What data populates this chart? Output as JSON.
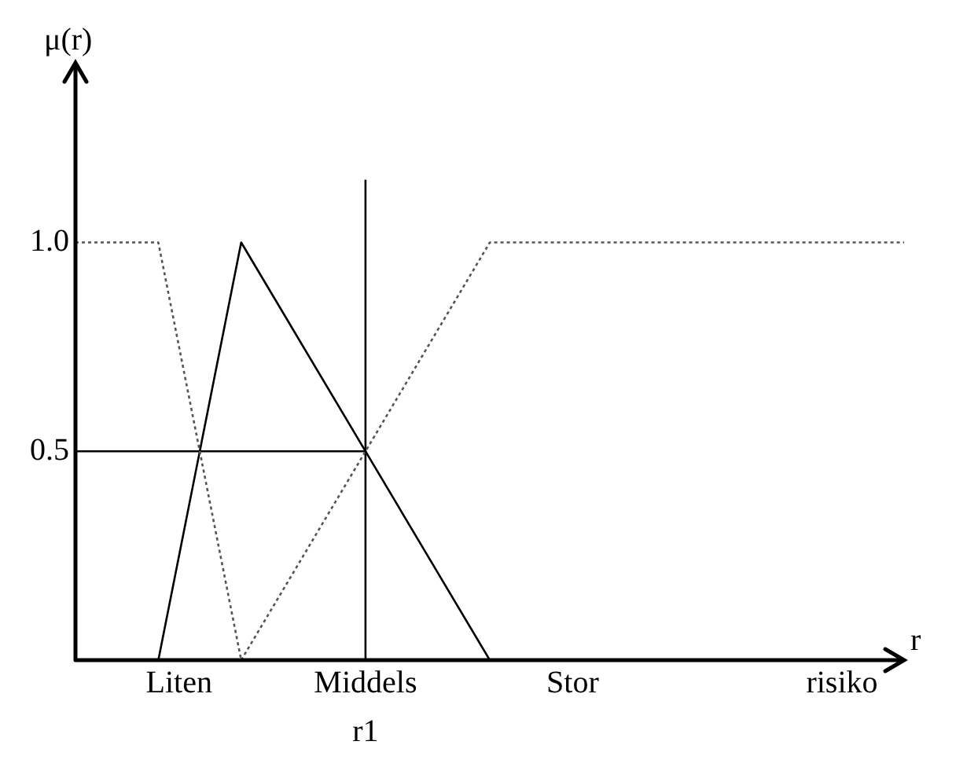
{
  "chart_data": {
    "type": "line",
    "xlabel": "r",
    "ylabel": "μ(r)",
    "categories": [
      null,
      null,
      null,
      null,
      null,
      "Liten",
      null,
      null,
      null,
      null,
      null,
      null,
      null,
      null,
      "Middels",
      null,
      null,
      null,
      null,
      null,
      null,
      null,
      null,
      null,
      "Stor",
      null,
      null,
      null,
      null,
      null,
      null,
      null,
      null,
      null,
      null,
      null,
      null,
      "risiko",
      null,
      null,
      null
    ],
    "ylim": [
      0,
      1.43
    ],
    "yticks": [
      {
        "value": 0.5,
        "label": "0.5"
      },
      {
        "value": 1,
        "label": "1.0"
      }
    ],
    "series": [
      {
        "color": "#555555",
        "line_style": "dotted",
        "values": [
          1,
          null,
          null,
          null,
          1,
          null,
          null,
          null,
          0,
          null,
          null,
          null,
          null,
          null,
          null,
          null,
          null,
          null,
          null,
          null,
          null,
          null,
          null,
          null,
          null,
          null,
          null,
          null,
          null,
          null,
          null,
          null,
          null,
          null,
          null,
          null,
          null,
          null,
          null,
          null,
          null
        ]
      },
      {
        "color": "#000000",
        "line_style": "solid",
        "values": [
          null,
          null,
          null,
          null,
          0,
          null,
          null,
          null,
          1,
          null,
          null,
          null,
          null,
          null,
          null,
          null,
          null,
          null,
          null,
          null,
          0,
          null,
          null,
          null,
          null,
          null,
          null,
          null,
          null,
          null,
          null,
          null,
          null,
          null,
          null,
          null,
          null,
          null,
          null,
          null,
          null
        ]
      },
      {
        "color": "#555555",
        "line_style": "dotted",
        "values": [
          null,
          null,
          null,
          null,
          null,
          null,
          null,
          null,
          0,
          null,
          null,
          null,
          null,
          null,
          null,
          null,
          null,
          null,
          null,
          null,
          1,
          null,
          null,
          null,
          null,
          null,
          null,
          null,
          null,
          null,
          null,
          null,
          null,
          null,
          null,
          null,
          null,
          null,
          null,
          null,
          1
        ]
      },
      {
        "color": "#000000",
        "line_style": "solid",
        "values": [
          0.5,
          null,
          null,
          null,
          null,
          null,
          null,
          null,
          null,
          null,
          null,
          null,
          null,
          null,
          0.5,
          null,
          null,
          null,
          null,
          null,
          null,
          null,
          null,
          null,
          null,
          null,
          null,
          null,
          null,
          null,
          null,
          null,
          null,
          null,
          null,
          null,
          null,
          null,
          null,
          null,
          null
        ]
      }
    ],
    "ref_lines": [
      {
        "axis": "x",
        "value": "Middels",
        "label": "r1",
        "color": "#000000"
      }
    ],
    "grid": false,
    "legend": false,
    "marker": "none"
  }
}
